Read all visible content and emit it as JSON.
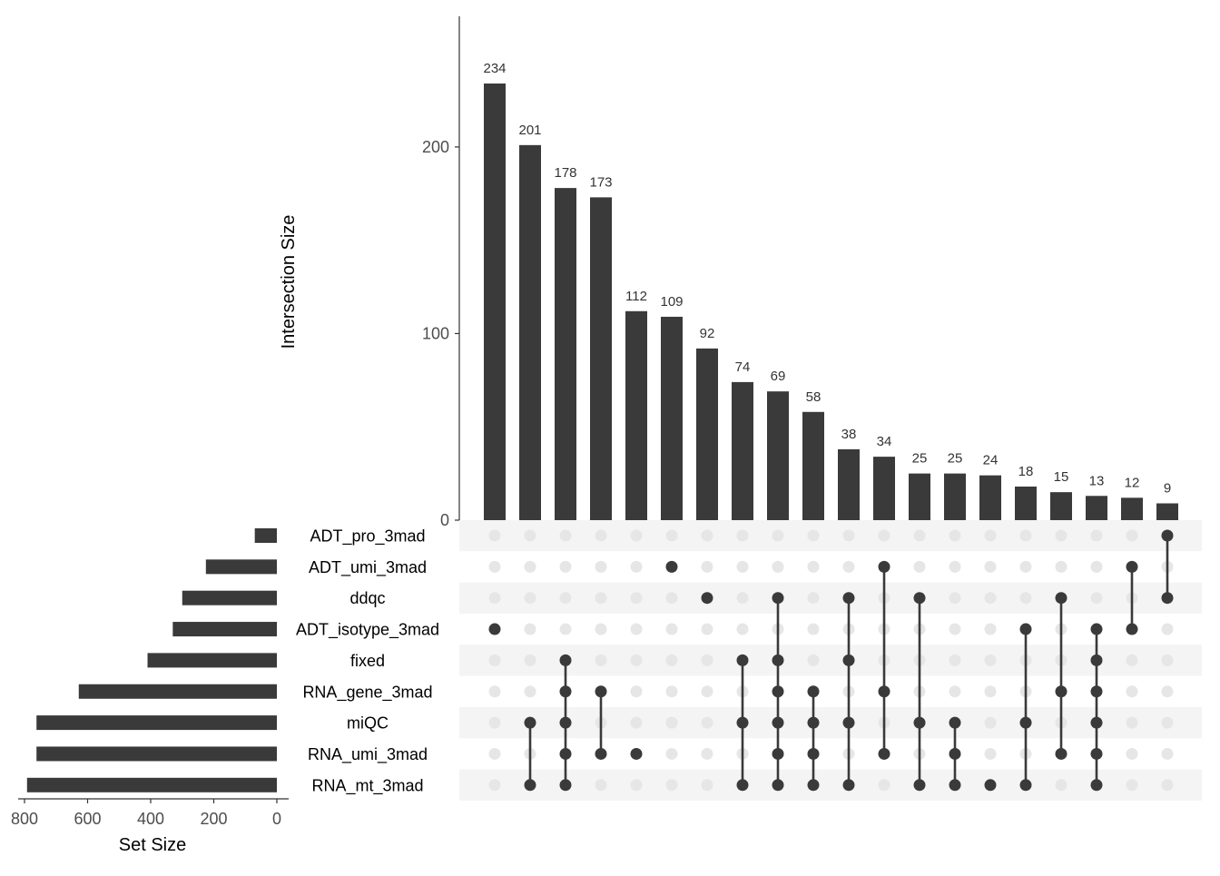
{
  "chart_data": {
    "type": "upset",
    "intersection_axis": {
      "label": "Intersection Size",
      "ticks": [
        0,
        100,
        200
      ],
      "ylim": [
        0,
        270
      ]
    },
    "set_size_axis": {
      "label": "Set Size",
      "ticks": [
        800,
        600,
        400,
        200,
        0
      ],
      "xlim": [
        870,
        0
      ]
    },
    "sets": [
      {
        "name": "ADT_pro_3mad",
        "size": 70
      },
      {
        "name": "ADT_umi_3mad",
        "size": 225
      },
      {
        "name": "ddqc",
        "size": 300
      },
      {
        "name": "ADT_isotype_3mad",
        "size": 330
      },
      {
        "name": "fixed",
        "size": 410
      },
      {
        "name": "RNA_gene_3mad",
        "size": 628
      },
      {
        "name": "miQC",
        "size": 762
      },
      {
        "name": "RNA_umi_3mad",
        "size": 762
      },
      {
        "name": "RNA_mt_3mad",
        "size": 792
      }
    ],
    "intersections": [
      {
        "size": 234,
        "members": [
          "ADT_isotype_3mad"
        ]
      },
      {
        "size": 201,
        "members": [
          "miQC",
          "RNA_mt_3mad"
        ]
      },
      {
        "size": 178,
        "members": [
          "fixed",
          "RNA_gene_3mad",
          "miQC",
          "RNA_umi_3mad",
          "RNA_mt_3mad"
        ]
      },
      {
        "size": 173,
        "members": [
          "RNA_gene_3mad",
          "RNA_umi_3mad"
        ]
      },
      {
        "size": 112,
        "members": [
          "RNA_umi_3mad"
        ]
      },
      {
        "size": 109,
        "members": [
          "ADT_umi_3mad"
        ]
      },
      {
        "size": 92,
        "members": [
          "ddqc"
        ]
      },
      {
        "size": 74,
        "members": [
          "fixed",
          "miQC",
          "RNA_mt_3mad"
        ]
      },
      {
        "size": 69,
        "members": [
          "ddqc",
          "fixed",
          "RNA_gene_3mad",
          "miQC",
          "RNA_umi_3mad",
          "RNA_mt_3mad"
        ]
      },
      {
        "size": 58,
        "members": [
          "RNA_gene_3mad",
          "miQC",
          "RNA_umi_3mad",
          "RNA_mt_3mad"
        ]
      },
      {
        "size": 38,
        "members": [
          "ddqc",
          "fixed",
          "miQC",
          "RNA_mt_3mad"
        ]
      },
      {
        "size": 34,
        "members": [
          "ADT_umi_3mad",
          "RNA_gene_3mad",
          "RNA_umi_3mad"
        ]
      },
      {
        "size": 25,
        "members": [
          "ddqc",
          "miQC",
          "RNA_mt_3mad"
        ]
      },
      {
        "size": 25,
        "members": [
          "miQC",
          "RNA_umi_3mad",
          "RNA_mt_3mad"
        ]
      },
      {
        "size": 24,
        "members": [
          "RNA_mt_3mad"
        ]
      },
      {
        "size": 18,
        "members": [
          "ADT_isotype_3mad",
          "miQC",
          "RNA_mt_3mad"
        ]
      },
      {
        "size": 15,
        "members": [
          "ddqc",
          "RNA_gene_3mad",
          "RNA_umi_3mad"
        ]
      },
      {
        "size": 13,
        "members": [
          "ADT_isotype_3mad",
          "fixed",
          "RNA_gene_3mad",
          "miQC",
          "RNA_umi_3mad",
          "RNA_mt_3mad"
        ]
      },
      {
        "size": 12,
        "members": [
          "ADT_umi_3mad",
          "ADT_isotype_3mad"
        ]
      },
      {
        "size": 9,
        "members": [
          "ADT_pro_3mad",
          "ddqc"
        ]
      }
    ],
    "colors": {
      "bar": "#3a3a3a",
      "dot_active": "#3a3a3a",
      "dot_inactive": "#e6e6e6",
      "stripe": "#f4f4f4",
      "axis": "#333333",
      "tick_label": "#4d4d4d"
    }
  }
}
